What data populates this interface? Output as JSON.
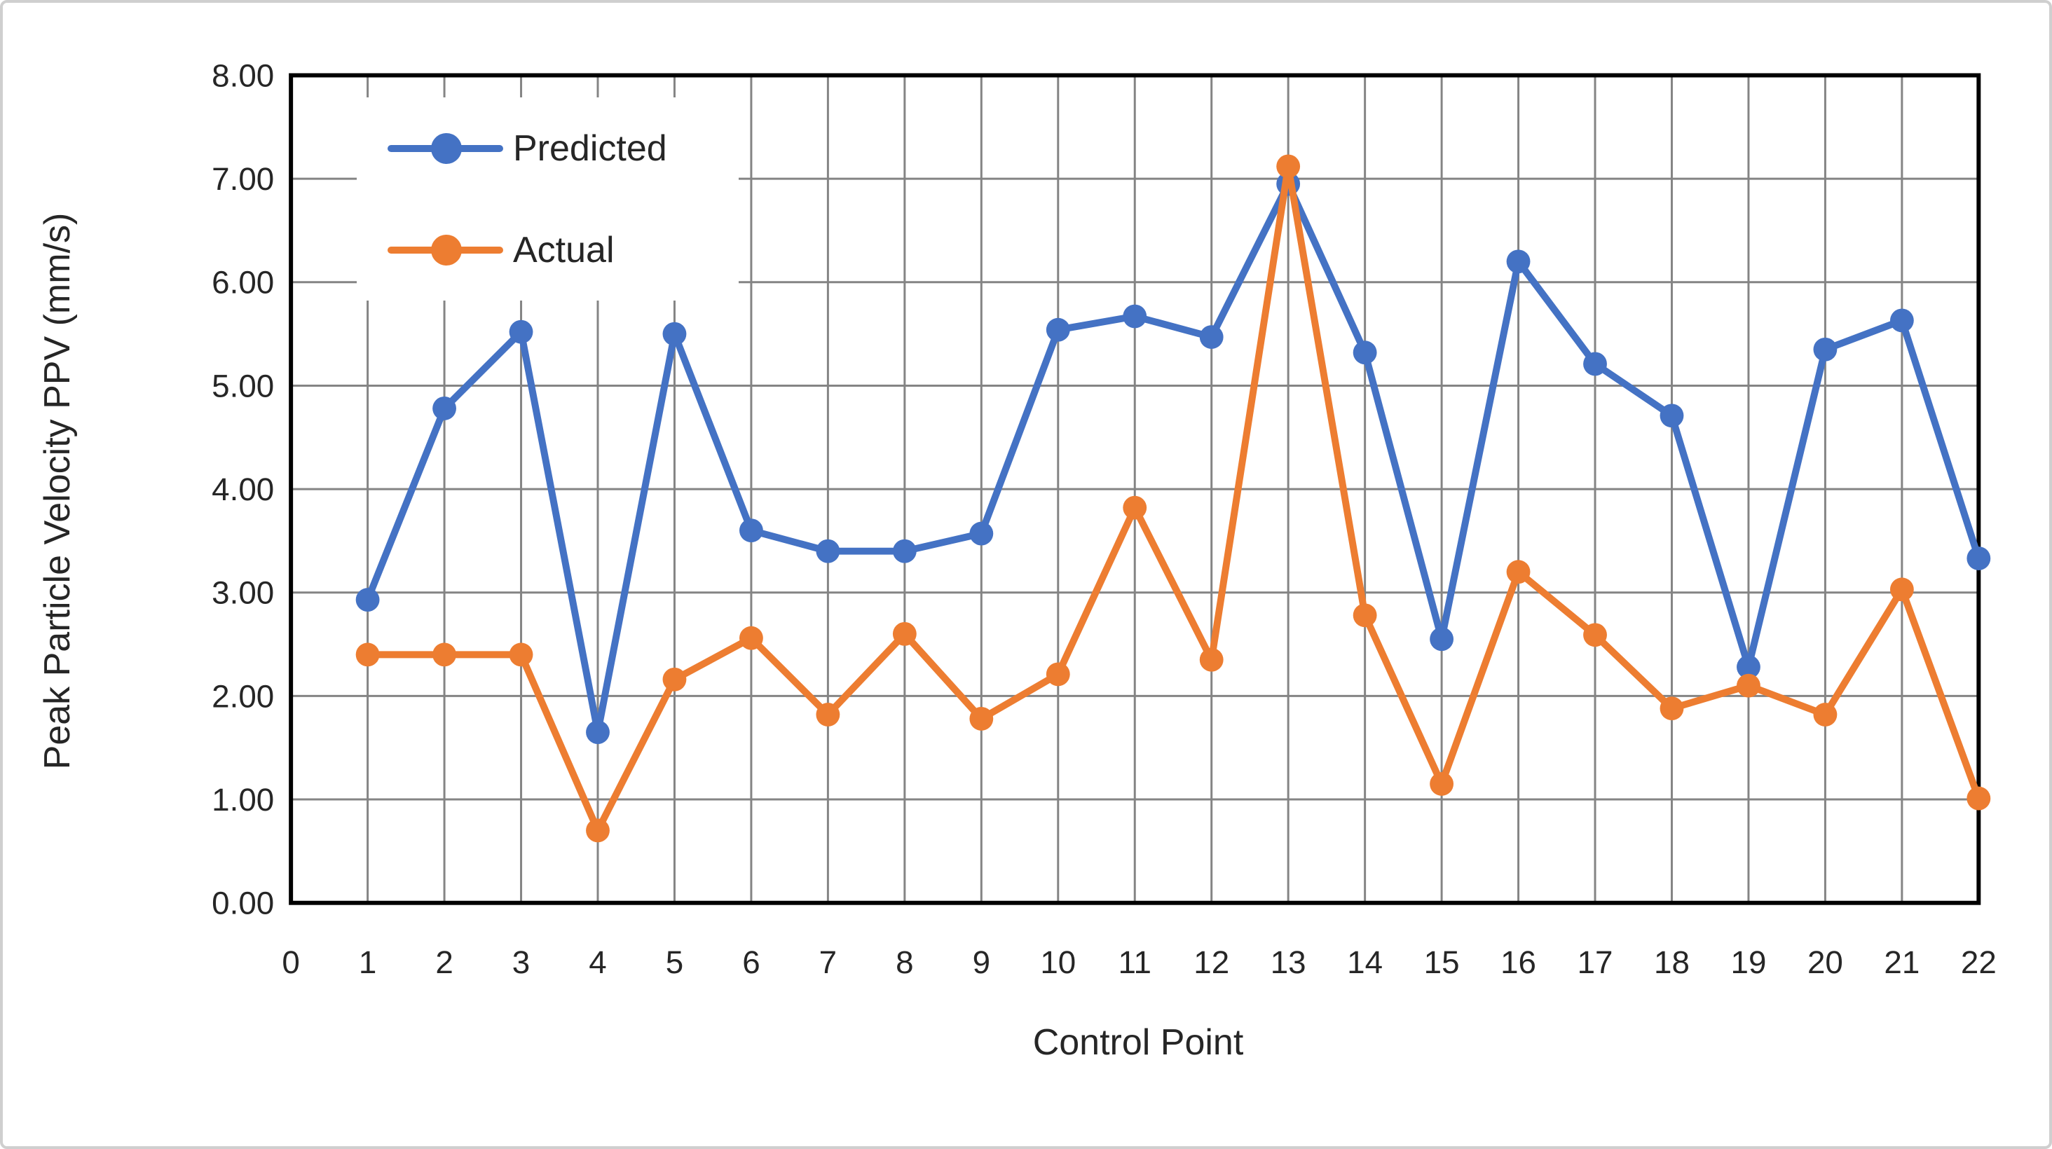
{
  "figure": {
    "background_color": "#ffffff",
    "frame_border_color": "#cfcfcf"
  },
  "styles": {
    "gridline_color": "#848484",
    "axis_line_color": "#000000",
    "text_color": "#262626"
  },
  "legend": {
    "position": "top-left-inside",
    "items": [
      {
        "label": "Predicted",
        "color": "#4472C4"
      },
      {
        "label": "Actual",
        "color": "#ED7D31"
      }
    ]
  },
  "chart_data": {
    "type": "line",
    "title": "",
    "xlabel": "Control Point",
    "ylabel": "Peak Particle Velocity PPV (mm/s)",
    "grid": true,
    "legend_position": "top-left-inside",
    "xlim": [
      0,
      22
    ],
    "ylim": [
      0,
      8
    ],
    "x_tick_labels": [
      "0",
      "1",
      "2",
      "3",
      "4",
      "5",
      "6",
      "7",
      "8",
      "9",
      "10",
      "11",
      "12",
      "13",
      "14",
      "15",
      "16",
      "17",
      "18",
      "19",
      "20",
      "21",
      "22"
    ],
    "y_tick_labels": [
      "0.00",
      "1.00",
      "2.00",
      "3.00",
      "4.00",
      "5.00",
      "6.00",
      "7.00",
      "8.00"
    ],
    "x": [
      1,
      2,
      3,
      4,
      5,
      6,
      7,
      8,
      9,
      10,
      11,
      12,
      13,
      14,
      15,
      16,
      17,
      18,
      19,
      20,
      21,
      22
    ],
    "series": [
      {
        "name": "Predicted",
        "color": "#4472C4",
        "values": [
          2.93,
          4.78,
          5.52,
          1.65,
          5.5,
          3.6,
          3.4,
          3.4,
          3.57,
          5.54,
          5.67,
          5.47,
          6.95,
          5.32,
          2.55,
          6.2,
          5.21,
          4.71,
          2.28,
          5.35,
          5.63,
          3.33
        ]
      },
      {
        "name": "Actual",
        "color": "#ED7D31",
        "values": [
          2.4,
          2.4,
          2.4,
          0.7,
          2.16,
          2.56,
          1.82,
          2.6,
          1.78,
          2.21,
          3.82,
          2.35,
          7.12,
          2.78,
          1.15,
          3.2,
          2.59,
          1.88,
          2.1,
          1.82,
          3.03,
          1.01
        ]
      }
    ]
  }
}
